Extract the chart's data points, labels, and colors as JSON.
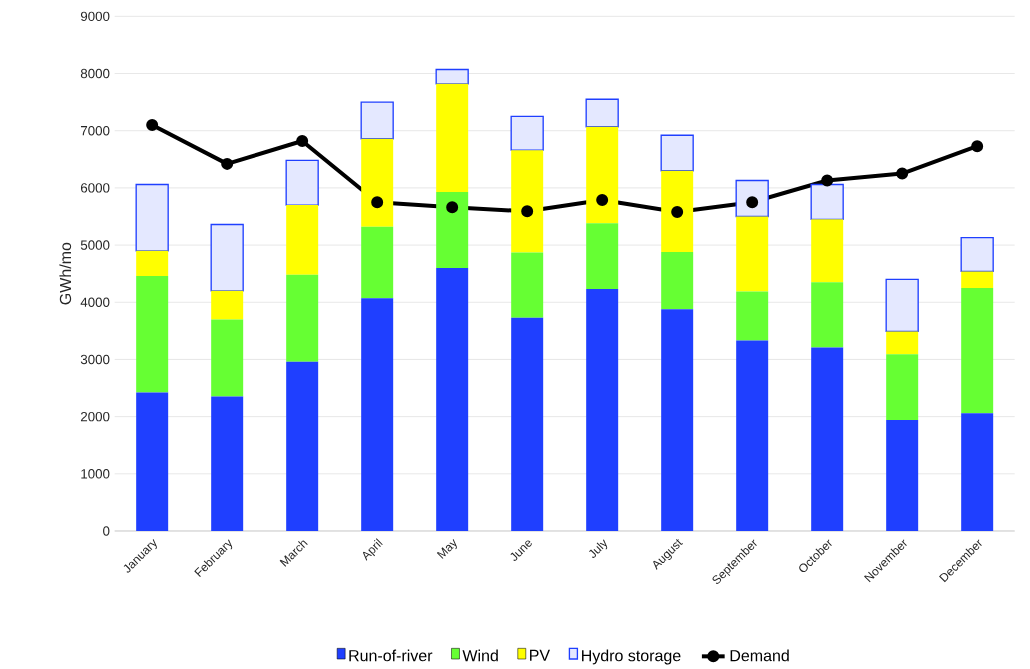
{
  "chart_data": {
    "type": "bar",
    "stacked": true,
    "ylabel": "GWh/mo",
    "categories": [
      "January",
      "February",
      "March",
      "April",
      "May",
      "June",
      "July",
      "August",
      "September",
      "October",
      "November",
      "December"
    ],
    "ylim": [
      0,
      9000
    ],
    "yticks": [
      0,
      1000,
      2000,
      3000,
      4000,
      5000,
      6000,
      7000,
      8000,
      9000
    ],
    "grid": "y",
    "legend": "bottom",
    "series": [
      {
        "name": "Run-of-river",
        "color": "#1f3fff",
        "values": [
          2420,
          2350,
          2960,
          4070,
          4600,
          3730,
          4230,
          3880,
          3330,
          3210,
          1940,
          2060
        ]
      },
      {
        "name": "Wind",
        "color": "#66ff33",
        "values": [
          2040,
          1350,
          1520,
          1250,
          1330,
          1140,
          1150,
          1000,
          860,
          1140,
          1150,
          2190
        ]
      },
      {
        "name": "PV",
        "color": "#ffff00",
        "values": [
          440,
          500,
          1220,
          1540,
          1890,
          1790,
          1690,
          1420,
          1310,
          1100,
          400,
          290
        ]
      },
      {
        "name": "Hydro storage",
        "color": "#1f3fff",
        "values": [
          1160,
          1160,
          780,
          640,
          250,
          590,
          480,
          620,
          630,
          610,
          910,
          590
        ]
      },
      {
        "name": "Demand",
        "type": "line",
        "marker": "circle",
        "color": "#000000",
        "values": [
          7100,
          6420,
          6820,
          5750,
          5660,
          5590,
          5790,
          5580,
          5750,
          6130,
          6250,
          6730
        ]
      }
    ]
  }
}
